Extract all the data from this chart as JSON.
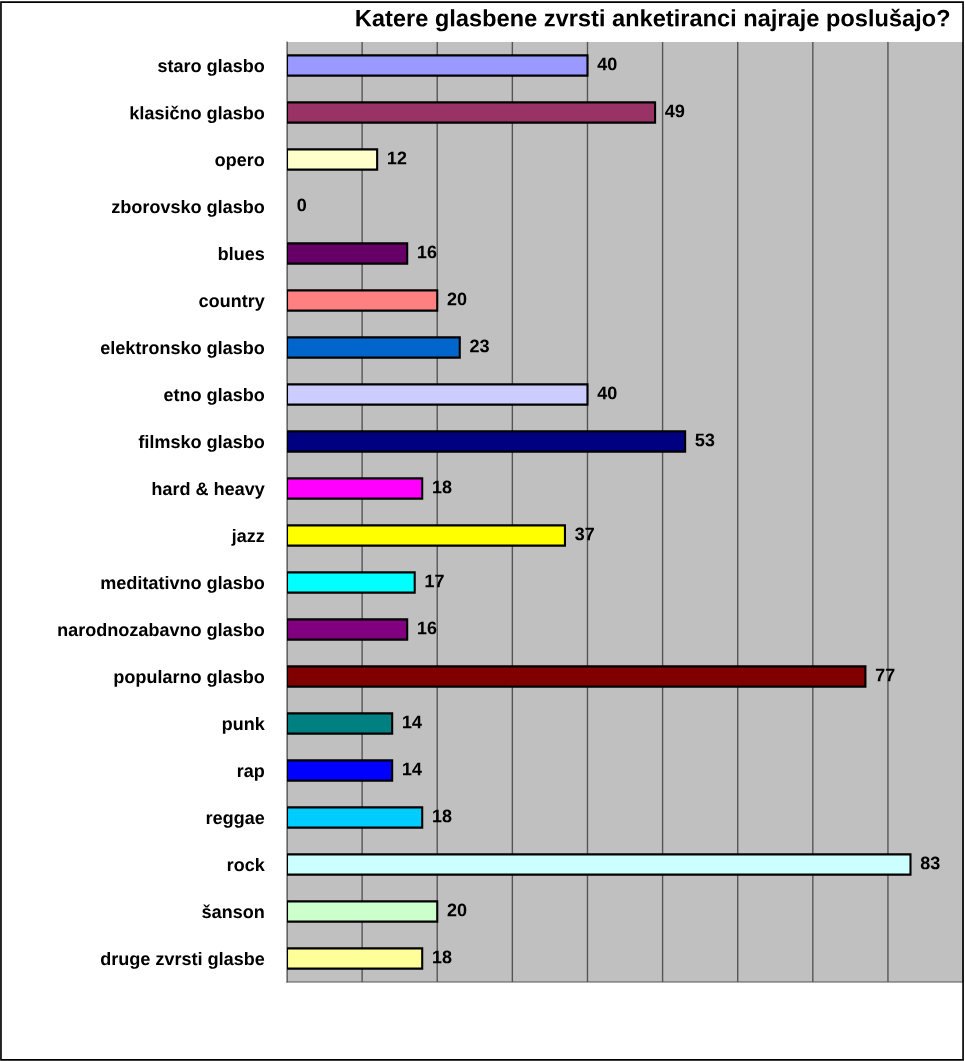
{
  "chart_data": {
    "type": "bar",
    "orientation": "horizontal",
    "title": "Katere glasbene zvrsti anketiranci najraje poslušajo?",
    "categories": [
      "staro glasbo",
      "klasično glasbo",
      "opero",
      "zborovsko glasbo",
      "blues",
      "country",
      "elektronsko glasbo",
      "etno glasbo",
      "filmsko glasbo",
      "hard & heavy",
      "jazz",
      "meditativno glasbo",
      "narodnozabavno glasbo",
      "popularno glasbo",
      "punk",
      "rap",
      "reggae",
      "rock",
      "šanson",
      "druge zvrsti glasbe"
    ],
    "values": [
      40,
      49,
      12,
      0,
      16,
      20,
      23,
      40,
      53,
      18,
      37,
      17,
      16,
      77,
      14,
      14,
      18,
      83,
      20,
      18
    ],
    "colors": [
      "#9999ff",
      "#993366",
      "#ffffcc",
      null,
      "#660066",
      "#ff8080",
      "#0066cc",
      "#ccccff",
      "#000080",
      "#ff00ff",
      "#ffff00",
      "#00ffff",
      "#800080",
      "#800000",
      "#008080",
      "#0000ff",
      "#00ccff",
      "#ccffff",
      "#ccffcc",
      "#ffff99"
    ],
    "data_labels": true,
    "xlim": [
      0,
      90
    ],
    "xticks": [
      {
        "value": 0,
        "label": null
      },
      {
        "value": 10,
        "label": null
      },
      {
        "value": 20,
        "label": null
      },
      {
        "value": 30,
        "label": null
      },
      {
        "value": 40,
        "label": null
      },
      {
        "value": 50,
        "label": null
      },
      {
        "value": 60,
        "label": null
      },
      {
        "value": 70,
        "label": null
      },
      {
        "value": 80,
        "label": null
      },
      {
        "value": 90,
        "label": null
      }
    ],
    "grid": "x",
    "tick_labels": "y"
  }
}
